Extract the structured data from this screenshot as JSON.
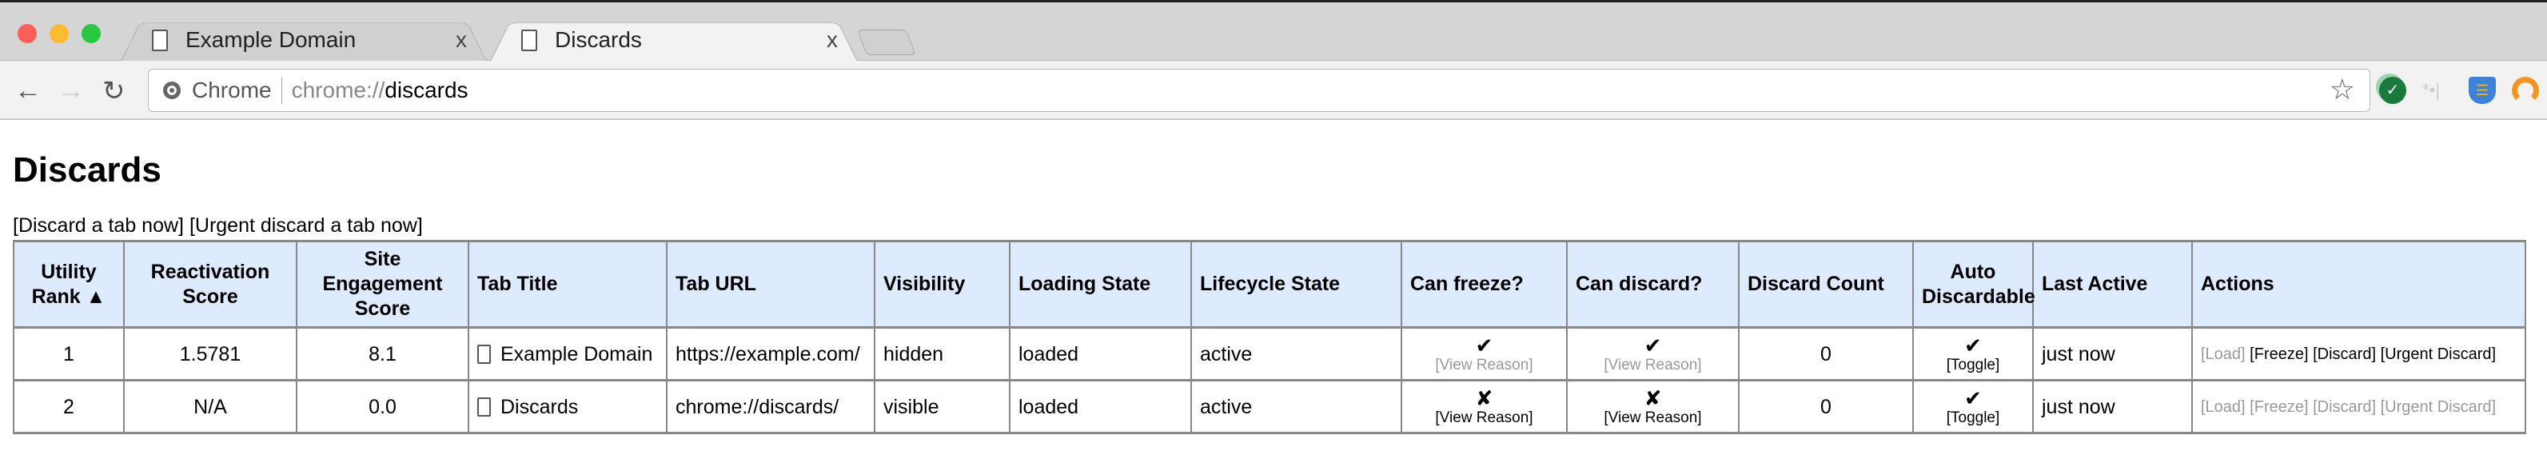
{
  "browser": {
    "tabs": [
      {
        "title": "Example Domain",
        "close": "x"
      },
      {
        "title": "Discards",
        "close": "x"
      }
    ],
    "omnibox": {
      "chip": "Chrome",
      "scheme": "chrome://",
      "host": "discards"
    },
    "colors": {
      "close": "#fe5f57",
      "minimize": "#febb2e",
      "maximize": "#28c840"
    }
  },
  "page": {
    "title": "Discards",
    "links": [
      "[Discard a tab now]",
      "[Urgent discard a tab now]"
    ],
    "columns": [
      "Utility Rank ▲",
      "Reactivation Score",
      "Site Engagement Score",
      "Tab Title",
      "Tab URL",
      "Visibility",
      "Loading State",
      "Lifecycle State",
      "Can freeze?",
      "Can discard?",
      "Discard Count",
      "Auto Discardable",
      "Last Active",
      "Actions"
    ],
    "rows": [
      {
        "rank": "1",
        "reactivation": "1.5781",
        "engagement": "8.1",
        "title": "Example Domain",
        "url": "https://example.com/",
        "visibility": "hidden",
        "loading": "loaded",
        "lifecycle": "active",
        "can_freeze": "✔",
        "freeze_reason": "[View Reason]",
        "can_discard": "✔",
        "discard_reason": "[View Reason]",
        "discard_count": "0",
        "auto": "✔",
        "toggle": "[Toggle]",
        "last_active": "just now",
        "actions": [
          "[Load]",
          "[Freeze]",
          "[Discard]",
          "[Urgent Discard]"
        ]
      },
      {
        "rank": "2",
        "reactivation": "N/A",
        "engagement": "0.0",
        "title": "Discards",
        "url": "chrome://discards/",
        "visibility": "visible",
        "loading": "loaded",
        "lifecycle": "active",
        "can_freeze": "✘",
        "freeze_reason": "[View Reason]",
        "can_discard": "✘",
        "discard_reason": "[View Reason]",
        "discard_count": "0",
        "auto": "✔",
        "toggle": "[Toggle]",
        "last_active": "just now",
        "actions": [
          "[Load]",
          "[Freeze]",
          "[Discard]",
          "[Urgent Discard]"
        ]
      }
    ]
  }
}
